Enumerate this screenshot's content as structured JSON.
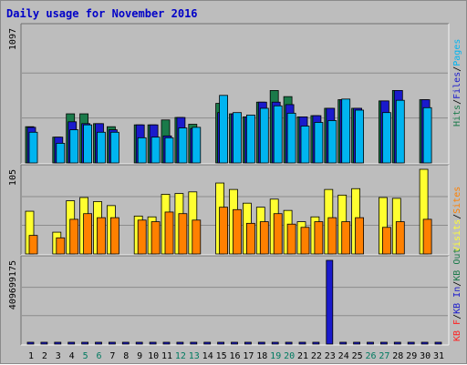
{
  "chart_data": {
    "type": "bar",
    "title": "Daily usage for November 2016",
    "categories": [
      "1",
      "2",
      "3",
      "4",
      "5",
      "6",
      "7",
      "8",
      "9",
      "10",
      "11",
      "12",
      "13",
      "14",
      "15",
      "16",
      "17",
      "18",
      "19",
      "20",
      "21",
      "22",
      "23",
      "24",
      "25",
      "26",
      "27",
      "28",
      "29",
      "30",
      "31"
    ],
    "weekend_categories": [
      "5",
      "6",
      "12",
      "13",
      "19",
      "20",
      "26",
      "27"
    ],
    "colors": {
      "hits": "#1a7a4a",
      "files": "#1a1acc",
      "pages": "#00b4f0",
      "visits": "#ffff30",
      "sites": "#ff8000",
      "kb_in": "#1a1acc",
      "kb_out": "#1a7a4a",
      "kb_f": "#ff2020",
      "title": "#0000c8",
      "weekend": "#007a60"
    },
    "panels": [
      {
        "name": "hits-files-pages",
        "ymax_label": "1097",
        "ymax": 1097,
        "legend": [
          {
            "text": "Hits",
            "color": "#1a7a4a"
          },
          {
            "text": "/",
            "color": "#000000"
          },
          {
            "text": "Files",
            "color": "#1a1acc"
          },
          {
            "text": "/",
            "color": "#000000"
          },
          {
            "text": "Pages",
            "color": "#00b4f0"
          }
        ],
        "series": [
          {
            "name": "Hits",
            "values": [
              295,
              0,
              210,
              400,
              400,
              320,
              295,
              0,
              310,
              310,
              350,
              370,
              315,
              0,
              485,
              400,
              375,
              495,
              590,
              540,
              375,
              385,
              445,
              515,
              445,
              0,
              505,
              590,
              0,
              515,
              0
            ]
          },
          {
            "name": "Files",
            "values": [
              290,
              0,
              210,
              335,
              320,
              320,
              270,
              0,
              310,
              310,
              220,
              370,
              280,
              0,
              410,
              400,
              375,
              495,
              495,
              475,
              375,
              385,
              445,
              515,
              445,
              0,
              505,
              590,
              0,
              515,
              0
            ]
          },
          {
            "name": "Pages",
            "values": [
              250,
              0,
              160,
              270,
              310,
              250,
              250,
              0,
              205,
              210,
              205,
              285,
              290,
              0,
              550,
              410,
              390,
              445,
              465,
              405,
              300,
              330,
              345,
              520,
              430,
              0,
              410,
              510,
              0,
              450,
              0
            ]
          }
        ]
      },
      {
        "name": "visits-sites",
        "ymax_label": "105",
        "ymax": 105,
        "legend": [
          {
            "text": "Visits",
            "color": "#ffff30"
          },
          {
            "text": "/",
            "color": "#000000"
          },
          {
            "text": "Sites",
            "color": "#ff8000"
          }
        ],
        "series": [
          {
            "name": "Visits",
            "values": [
              53,
              0,
              27,
              66,
              70,
              65,
              60,
              0,
              47,
              46,
              74,
              75,
              77,
              0,
              88,
              80,
              63,
              58,
              68,
              54,
              40,
              46,
              80,
              73,
              81,
              0,
              70,
              69,
              0,
              105,
              0
            ]
          },
          {
            "name": "Sites",
            "values": [
              23,
              0,
              20,
              43,
              50,
              45,
              45,
              0,
              42,
              40,
              52,
              50,
              42,
              0,
              58,
              55,
              38,
              40,
              50,
              37,
              33,
              40,
              45,
              40,
              45,
              0,
              33,
              40,
              0,
              43,
              0
            ]
          }
        ]
      },
      {
        "name": "kbytes",
        "ymax_label": "409699175",
        "ymax": 409699175,
        "legend": [
          {
            "text": "KB F",
            "color": "#ff2020"
          },
          {
            "text": "/",
            "color": "#000000"
          },
          {
            "text": "KB In",
            "color": "#1a1acc"
          },
          {
            "text": "/",
            "color": "#000000"
          },
          {
            "text": "KB Out",
            "color": "#1a7a4a"
          }
        ],
        "series": [
          {
            "name": "KB F",
            "values": [
              0,
              0,
              0,
              0,
              0,
              0,
              0,
              0,
              0,
              0,
              0,
              0,
              0,
              0,
              0,
              0,
              0,
              0,
              0,
              0,
              0,
              0,
              0,
              0,
              0,
              0,
              0,
              0,
              0,
              0,
              0
            ]
          },
          {
            "name": "KB In",
            "values": [
              4000000,
              4000000,
              4000000,
              4000000,
              4000000,
              4000000,
              4000000,
              4000000,
              4000000,
              4000000,
              4000000,
              4000000,
              4000000,
              4000000,
              4000000,
              4000000,
              4000000,
              4000000,
              4000000,
              4000000,
              4000000,
              4000000,
              409699175,
              4000000,
              4000000,
              4000000,
              4000000,
              4000000,
              4000000,
              4000000,
              4000000
            ]
          },
          {
            "name": "KB Out",
            "values": [
              0,
              0,
              0,
              0,
              0,
              0,
              0,
              0,
              0,
              0,
              0,
              0,
              0,
              0,
              0,
              0,
              0,
              0,
              0,
              0,
              0,
              0,
              0,
              0,
              0,
              0,
              0,
              0,
              0,
              0,
              0
            ]
          }
        ]
      }
    ]
  }
}
